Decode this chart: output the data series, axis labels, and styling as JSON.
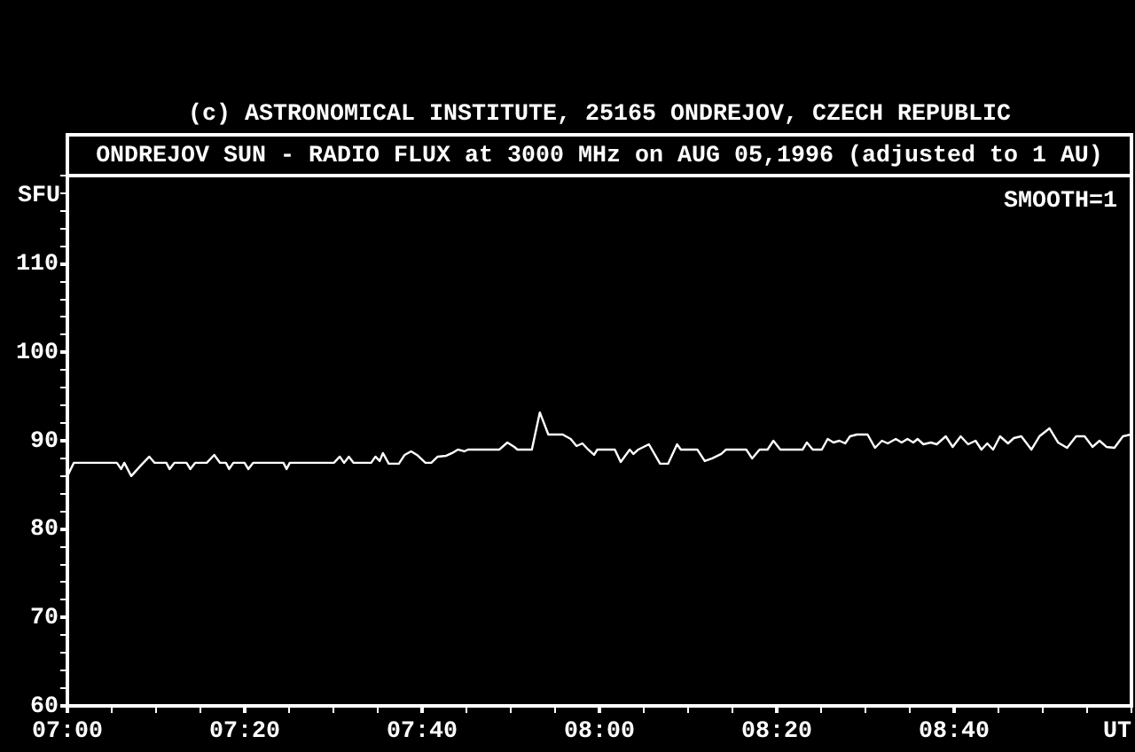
{
  "chart_data": {
    "type": "line",
    "title": "(c) ASTRONOMICAL INSTITUTE, 25165 ONDREJOV, CZECH REPUBLIC",
    "subtitle": "ONDREJOV SUN - RADIO FLUX at 3000 MHz on AUG 05,1996 (adjusted to 1 AU)",
    "xlabel": "UT",
    "ylabel": "SFU",
    "annotations": [
      "SMOOTH=1"
    ],
    "x": [
      7.0,
      7.012,
      7.093,
      7.101,
      7.107,
      7.12,
      7.138,
      7.154,
      7.164,
      7.186,
      7.192,
      7.201,
      7.224,
      7.231,
      7.24,
      7.262,
      7.276,
      7.287,
      7.298,
      7.304,
      7.312,
      7.333,
      7.34,
      7.349,
      7.406,
      7.412,
      7.418,
      7.501,
      7.512,
      7.52,
      7.529,
      7.538,
      7.571,
      7.579,
      7.587,
      7.593,
      7.604,
      7.623,
      7.634,
      7.646,
      7.657,
      7.673,
      7.684,
      7.696,
      7.712,
      7.723,
      7.734,
      7.746,
      7.753,
      7.812,
      7.827,
      7.84,
      7.846,
      7.873,
      7.888,
      7.904,
      7.931,
      7.946,
      7.957,
      7.968,
      7.979,
      7.99,
      7.996,
      8.029,
      8.04,
      8.057,
      8.064,
      8.073,
      8.093,
      8.114,
      8.129,
      8.146,
      8.153,
      8.184,
      8.198,
      8.212,
      8.229,
      8.238,
      8.276,
      8.287,
      8.301,
      8.316,
      8.327,
      8.34,
      8.382,
      8.39,
      8.401,
      8.418,
      8.429,
      8.44,
      8.451,
      8.462,
      8.471,
      8.484,
      8.504,
      8.518,
      8.531,
      8.542,
      8.557,
      8.568,
      8.579,
      8.59,
      8.598,
      8.609,
      8.623,
      8.634,
      8.651,
      8.664,
      8.679,
      8.693,
      8.707,
      8.718,
      8.729,
      8.74,
      8.753,
      8.768,
      8.779,
      8.793,
      8.812,
      8.827,
      8.846,
      8.862,
      8.879,
      8.896,
      8.912,
      8.927,
      8.94,
      8.953,
      8.968,
      8.984,
      8.998
    ],
    "series": [
      {
        "color": "#ffffff",
        "values": [
          86.0,
          87.5,
          87.5,
          86.8,
          87.5,
          86.0,
          87.2,
          88.2,
          87.5,
          87.5,
          86.8,
          87.5,
          87.5,
          86.8,
          87.5,
          87.5,
          88.4,
          87.5,
          87.5,
          86.8,
          87.5,
          87.5,
          86.8,
          87.5,
          87.5,
          86.8,
          87.5,
          87.5,
          88.2,
          87.5,
          88.2,
          87.5,
          87.5,
          88.2,
          87.7,
          88.6,
          87.4,
          87.4,
          88.4,
          88.8,
          88.4,
          87.5,
          87.5,
          88.2,
          88.3,
          88.6,
          89.0,
          88.8,
          89.0,
          89.0,
          89.8,
          89.3,
          89.0,
          89.0,
          93.2,
          90.7,
          90.7,
          90.2,
          89.4,
          89.7,
          89.0,
          88.4,
          89.0,
          89.0,
          87.6,
          89.0,
          88.5,
          89.0,
          89.6,
          87.4,
          87.4,
          89.6,
          89.0,
          89.0,
          87.7,
          88.0,
          88.5,
          89.0,
          89.0,
          88.0,
          89.0,
          89.0,
          90.0,
          89.0,
          89.0,
          89.8,
          89.0,
          89.0,
          90.2,
          89.8,
          90.0,
          89.7,
          90.5,
          90.7,
          90.7,
          89.2,
          90.0,
          89.7,
          90.2,
          89.8,
          90.2,
          89.8,
          90.2,
          89.6,
          89.8,
          89.6,
          90.5,
          89.3,
          90.5,
          89.6,
          90.0,
          89.0,
          89.7,
          89.0,
          90.5,
          89.7,
          90.3,
          90.5,
          89.0,
          90.5,
          91.4,
          89.8,
          89.2,
          90.5,
          90.5,
          89.3,
          90.0,
          89.3,
          89.2,
          90.5,
          90.7
        ]
      }
    ],
    "xlim": [
      7,
      9
    ],
    "xticks": [
      {
        "value": 7,
        "label": "07:00"
      },
      {
        "value": 7.0833,
        "label": null
      },
      {
        "value": 7.1667,
        "label": null
      },
      {
        "value": 7.25,
        "label": null
      },
      {
        "value": 7.3333,
        "label": "07:20"
      },
      {
        "value": 7.4167,
        "label": null
      },
      {
        "value": 7.5,
        "label": null
      },
      {
        "value": 7.5833,
        "label": null
      },
      {
        "value": 7.6667,
        "label": "07:40"
      },
      {
        "value": 7.75,
        "label": null
      },
      {
        "value": 7.8333,
        "label": null
      },
      {
        "value": 7.9167,
        "label": null
      },
      {
        "value": 8,
        "label": "08:00"
      },
      {
        "value": 8.0833,
        "label": null
      },
      {
        "value": 8.1667,
        "label": null
      },
      {
        "value": 8.25,
        "label": null
      },
      {
        "value": 8.3333,
        "label": "08:20"
      },
      {
        "value": 8.4167,
        "label": null
      },
      {
        "value": 8.5,
        "label": null
      },
      {
        "value": 8.5833,
        "label": null
      },
      {
        "value": 8.6667,
        "label": "08:40"
      },
      {
        "value": 8.75,
        "label": null
      },
      {
        "value": 8.8333,
        "label": null
      },
      {
        "value": 8.9167,
        "label": null
      },
      {
        "value": 9,
        "label": null
      }
    ],
    "ylim": [
      60,
      120
    ],
    "yticks": [
      60,
      {
        "value": 62,
        "label": null
      },
      {
        "value": 64,
        "label": null
      },
      {
        "value": 66,
        "label": null
      },
      {
        "value": 68,
        "label": null
      },
      70,
      {
        "value": 72,
        "label": null
      },
      {
        "value": 74,
        "label": null
      },
      {
        "value": 76,
        "label": null
      },
      {
        "value": 78,
        "label": null
      },
      80,
      {
        "value": 82,
        "label": null
      },
      {
        "value": 84,
        "label": null
      },
      {
        "value": 86,
        "label": null
      },
      {
        "value": 88,
        "label": null
      },
      90,
      {
        "value": 92,
        "label": null
      },
      {
        "value": 94,
        "label": null
      },
      {
        "value": 96,
        "label": null
      },
      {
        "value": 98,
        "label": null
      },
      100,
      {
        "value": 102,
        "label": null
      },
      {
        "value": 104,
        "label": null
      },
      {
        "value": 106,
        "label": null
      },
      {
        "value": 108,
        "label": null
      },
      110,
      {
        "value": 112,
        "label": null
      },
      {
        "value": 114,
        "label": null
      },
      {
        "value": 116,
        "label": null
      },
      {
        "value": 118,
        "label": null
      },
      {
        "value": 120,
        "label": null
      }
    ]
  }
}
